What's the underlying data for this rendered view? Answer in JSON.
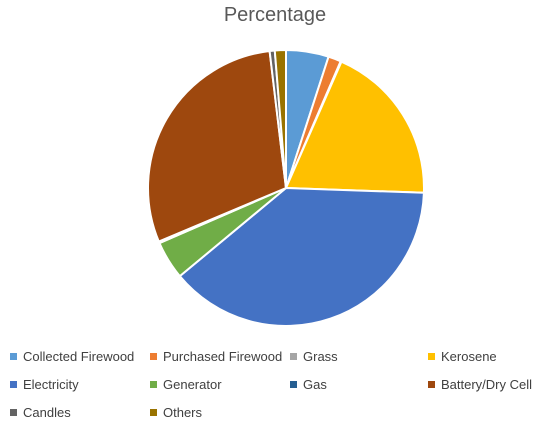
{
  "chart_data": {
    "type": "pie",
    "title": "Percentage",
    "categories": [
      "Collected Firewood",
      "Purchased Firewood",
      "Grass",
      "Kerosene",
      "Electricity",
      "Generator",
      "Gas",
      "Battery/Dry Cell",
      "Candles",
      "Others"
    ],
    "values": [
      5.0,
      1.5,
      0.1,
      19.0,
      38.5,
      4.5,
      0.2,
      29.5,
      0.6,
      1.3
    ],
    "colors": [
      "#5B9BD5",
      "#ED7D31",
      "#A5A5A5",
      "#FFC000",
      "#4472C4",
      "#70AD47",
      "#255E91",
      "#9E480E",
      "#636363",
      "#997300"
    ],
    "legend": "bottom"
  }
}
